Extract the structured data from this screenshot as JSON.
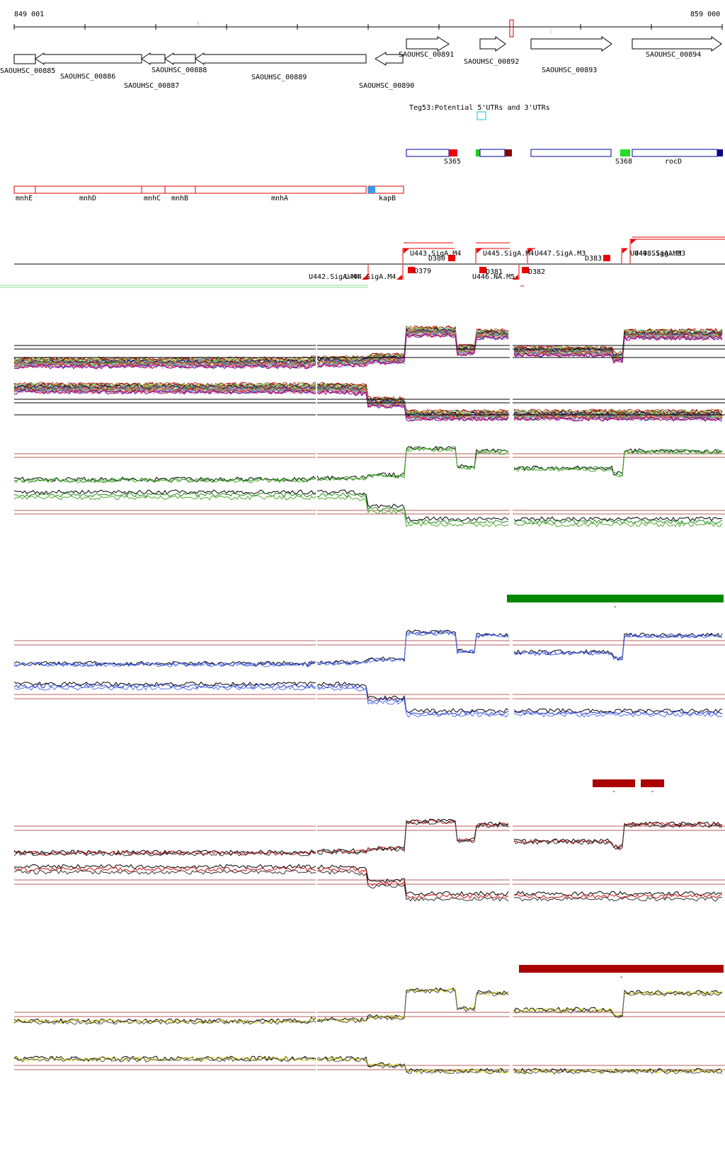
{
  "coords": {
    "start": "849 001",
    "end": "859 000"
  },
  "genes": [
    {
      "label": "SAOUHSC_00885",
      "dir": "right"
    },
    {
      "label": "SAOUHSC_00886",
      "dir": "left"
    },
    {
      "label": "SAOUHSC_00887",
      "dir": "left"
    },
    {
      "label": "SAOUHSC_00888",
      "dir": "left"
    },
    {
      "label": "SAOUHSC_00889",
      "dir": "left"
    },
    {
      "label": "SAOUHSC_00890",
      "dir": "left"
    },
    {
      "label": "SAOUHSC_00891",
      "dir": "right"
    },
    {
      "label": "SAOUHSC_00892",
      "dir": "right"
    },
    {
      "label": "SAOUHSC_00893",
      "dir": "right"
    },
    {
      "label": "SAOUHSC_00894",
      "dir": "right"
    }
  ],
  "teg_label": "Teg53:Potential 5'UTRs and 3'UTRs",
  "srna": [
    {
      "label": "S365"
    },
    {
      "label": "S368"
    },
    {
      "label": "rocD"
    }
  ],
  "operon": [
    {
      "label": "mnhE"
    },
    {
      "label": "mnhD"
    },
    {
      "label": "mnhC"
    },
    {
      "label": "mnhB"
    },
    {
      "label": "mnhA"
    },
    {
      "label": "kapB"
    }
  ],
  "tss": [
    {
      "label": "U443.SigA.M4"
    },
    {
      "label": "D380"
    },
    {
      "label": "D379"
    },
    {
      "label": "U445.SigA.M4"
    },
    {
      "label": "U447.SigA.M3"
    },
    {
      "label": "D381"
    },
    {
      "label": "D382"
    },
    {
      "label": "D383"
    },
    {
      "label": "U446.NA.M5"
    },
    {
      "label": "U449.SigA.M3"
    },
    {
      "label": "U448.SigA.M3"
    },
    {
      "label": "U442.SigA.M4"
    },
    {
      "label": "U444.SigA.M4"
    }
  ],
  "colors": {
    "gene": "#000000",
    "operon": "#dd0000",
    "srna": "#0000aa",
    "tss": "#ee0000",
    "cond_green": "#007700",
    "cond_blue": "#0022bb",
    "cond_red": "#aa0000",
    "cond_yellow": "#dddd00"
  },
  "panels": [
    {
      "name": "panel-all",
      "line_color": "#999999"
    },
    {
      "name": "panel-green",
      "line_color": "#228b22",
      "bar_color": "#008800",
      "bar_label": "-"
    },
    {
      "name": "panel-blue",
      "line_color": "#2233bb",
      "bar_color": "#0033cc",
      "bar_label": "-"
    },
    {
      "name": "panel-red",
      "line_color": "#cc1111",
      "bar_color": "#aa0000",
      "bar_label": "-"
    },
    {
      "name": "panel-yellow",
      "line_color": "#dddd00"
    }
  ]
}
